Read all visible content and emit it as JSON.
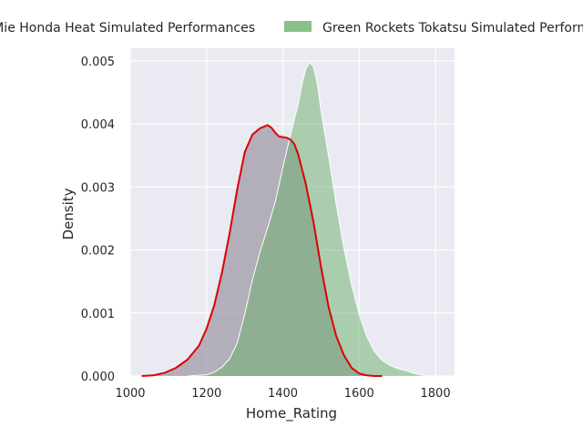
{
  "chart_data": {
    "type": "area",
    "chart_kind": "kde density plot",
    "xlabel": "Home_Rating",
    "ylabel": "Density",
    "xlim": [
      1000,
      1850
    ],
    "ylim": [
      0,
      0.0052
    ],
    "x_ticks": [
      1000,
      1200,
      1400,
      1600,
      1800
    ],
    "x_tick_labels": [
      "1000",
      "1200",
      "1400",
      "1600",
      "1800"
    ],
    "y_ticks": [
      0,
      0.001,
      0.002,
      0.003,
      0.004,
      0.005
    ],
    "y_tick_labels": [
      "0.000",
      "0.001",
      "0.002",
      "0.003",
      "0.004",
      "0.005"
    ],
    "grid": true,
    "legend_placement": "top, outside plot",
    "background_color": "#eaeaf2",
    "series": [
      {
        "name": "Mie Honda Heat Simulated Performances",
        "fill_color": "#9a94a3",
        "line_color": "#dd0000",
        "x": [
          1030,
          1060,
          1090,
          1120,
          1150,
          1180,
          1200,
          1220,
          1240,
          1260,
          1280,
          1300,
          1320,
          1340,
          1360,
          1370,
          1380,
          1390,
          1400,
          1410,
          1420,
          1430,
          1440,
          1460,
          1480,
          1500,
          1520,
          1540,
          1560,
          1580,
          1600,
          1620,
          1640,
          1660
        ],
        "values": [
          0.0,
          1e-05,
          5e-05,
          0.00013,
          0.00026,
          0.00048,
          0.00075,
          0.00112,
          0.00163,
          0.00225,
          0.00295,
          0.00355,
          0.00383,
          0.00393,
          0.00398,
          0.00394,
          0.00386,
          0.0038,
          0.00379,
          0.00378,
          0.00375,
          0.00368,
          0.00352,
          0.00305,
          0.00245,
          0.00173,
          0.00109,
          0.00063,
          0.00033,
          0.00013,
          4e-05,
          1e-05,
          0.0,
          0.0
        ]
      },
      {
        "name": "Green Rockets Tokatsu Simulated Performances",
        "fill_color": "#6ab06a",
        "line_color": "#ffffff",
        "x": [
          1150,
          1200,
          1220,
          1240,
          1260,
          1280,
          1300,
          1320,
          1340,
          1360,
          1380,
          1400,
          1420,
          1440,
          1450,
          1460,
          1470,
          1480,
          1490,
          1500,
          1520,
          1540,
          1560,
          1580,
          1600,
          1620,
          1640,
          1660,
          1680,
          1700,
          1720,
          1740,
          1760,
          1780
        ],
        "values": [
          0.0,
          2e-05,
          6e-05,
          0.00014,
          0.00027,
          0.00052,
          0.00098,
          0.00152,
          0.00197,
          0.00235,
          0.00276,
          0.00331,
          0.00383,
          0.00431,
          0.00463,
          0.00487,
          0.00497,
          0.00491,
          0.00465,
          0.00421,
          0.00348,
          0.00272,
          0.00203,
          0.00145,
          0.00098,
          0.00063,
          0.00039,
          0.00025,
          0.00017,
          0.00012,
          9e-05,
          5e-05,
          2e-05,
          0.0
        ]
      }
    ]
  }
}
